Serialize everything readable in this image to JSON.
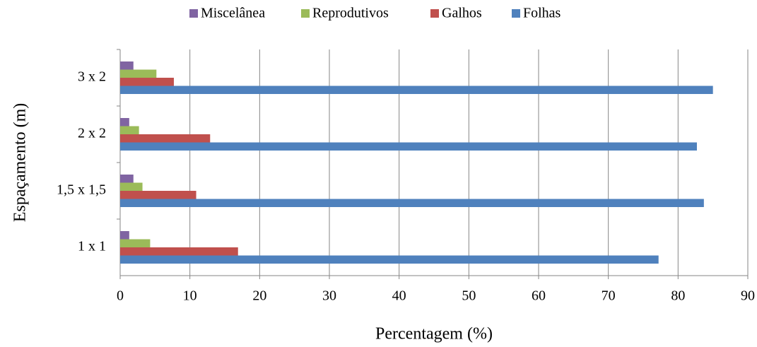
{
  "chart_data": {
    "type": "hbar",
    "x_label": "Percentagem (%)",
    "y_label": "Espaçamento (m)",
    "categories": [
      "1 x 1",
      "1,5 x 1,5",
      "2 x 2",
      "3 x 2"
    ],
    "series": [
      {
        "name": "Miscelânea",
        "color": "#8064a2",
        "values": [
          1.3,
          1.9,
          1.3,
          1.9
        ]
      },
      {
        "name": "Reprodutivos",
        "color": "#9bbb59",
        "values": [
          4.3,
          3.2,
          2.7,
          5.2
        ]
      },
      {
        "name": "Galhos",
        "color": "#c0504d",
        "values": [
          16.9,
          10.9,
          12.9,
          7.7
        ]
      },
      {
        "name": "Folhas",
        "color": "#4f81bd",
        "values": [
          77.2,
          83.7,
          82.7,
          85.0
        ]
      }
    ],
    "xlim": [
      0,
      90
    ],
    "xticks": [
      0,
      10,
      20,
      30,
      40,
      50,
      60,
      70,
      80,
      90
    ],
    "grid": true,
    "legend": "top"
  }
}
